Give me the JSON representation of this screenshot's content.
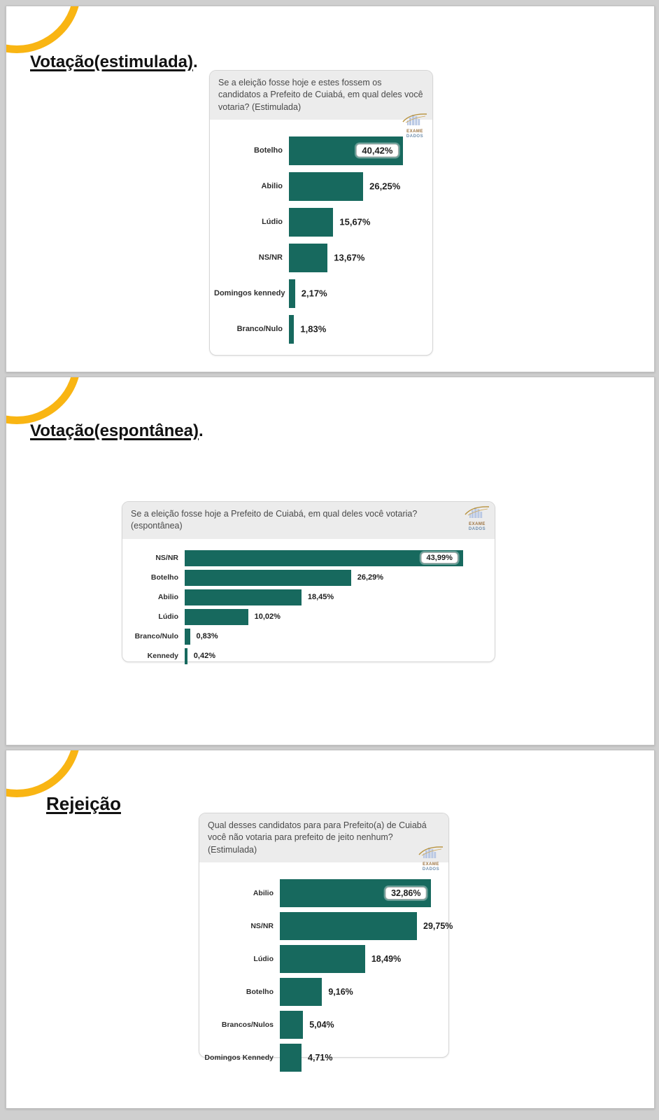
{
  "colors": {
    "accent_yellow": "#F9B513",
    "bar_teal": "#17695E",
    "page_background": "#CFCFCF",
    "card_header_gray": "#ECECEC"
  },
  "logo": {
    "line1": "EXAME",
    "line2": "DADOS"
  },
  "slides": [
    {
      "title": "Votação(estimulada)",
      "title_suffix": "."
    },
    {
      "title": "Votação(espontânea)",
      "title_suffix": "."
    },
    {
      "title": "Rejeição",
      "title_suffix": ""
    }
  ],
  "chart_data": [
    {
      "type": "bar",
      "orientation": "horizontal",
      "title": "Se a eleição fosse hoje e estes fossem os candidatos a Prefeito de Cuiabá, em qual deles você votaria? (Estimulada)",
      "categories": [
        "Botelho",
        "Abilio",
        "Lúdio",
        "NS/NR",
        "Domingos kennedy",
        "Branco/Nulo"
      ],
      "values": [
        40.42,
        26.25,
        15.67,
        13.67,
        2.17,
        1.83
      ],
      "value_labels": [
        "40,42%",
        "26,25%",
        "15,67%",
        "13,67%",
        "2,17%",
        "1,83%"
      ],
      "xlim": [
        0,
        45
      ],
      "bar_color": "#17695E",
      "boxed_label_index": 0,
      "grid": false,
      "legend": null
    },
    {
      "type": "bar",
      "orientation": "horizontal",
      "title": "Se a eleição fosse hoje a Prefeito de Cuiabá, em qual deles você votaria? (espontânea)",
      "categories": [
        "NS/NR",
        "Botelho",
        "Abilio",
        "Lúdio",
        "Branco/Nulo",
        "Kennedy"
      ],
      "values": [
        43.99,
        26.29,
        18.45,
        10.02,
        0.83,
        0.42
      ],
      "value_labels": [
        "43,99%",
        "26,29%",
        "18,45%",
        "10,02%",
        "0,83%",
        "0,42%"
      ],
      "xlim": [
        0,
        45
      ],
      "bar_color": "#17695E",
      "boxed_label_index": 0,
      "grid": false,
      "legend": null
    },
    {
      "type": "bar",
      "orientation": "horizontal",
      "title": "Qual desses candidatos para para Prefeito(a) de Cuiabá você não votaria para prefeito de jeito nenhum? (Estimulada)",
      "categories": [
        "Abilio",
        "NS/NR",
        "Lúdio",
        "Botelho",
        "Brancos/Nulos",
        "Domingos Kennedy"
      ],
      "values": [
        32.86,
        29.75,
        18.49,
        9.16,
        5.04,
        4.71
      ],
      "value_labels": [
        "32,86%",
        "29,75%",
        "18,49%",
        "9,16%",
        "5,04%",
        "4,71%"
      ],
      "xlim": [
        0,
        34
      ],
      "bar_color": "#17695E",
      "boxed_label_index": 0,
      "grid": false,
      "legend": null
    }
  ]
}
